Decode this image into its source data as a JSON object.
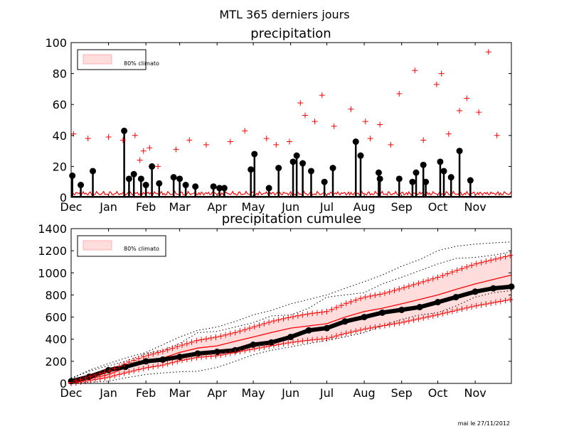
{
  "figure": {
    "suptitle": "MTL 365 derniers jours",
    "footer": "mai le 27/11/2012"
  },
  "colors": {
    "observed": "#000000",
    "mean": "#ff0000",
    "climato_band_fill": "#ffdddd",
    "climato_band_edge": "#ff9999",
    "extreme_marker": "#ff0000",
    "axes": "#000000"
  },
  "chart_data": [
    {
      "type": "line",
      "title": "precipitation",
      "xlabel": "",
      "ylabel": "",
      "xlim": [
        0,
        365
      ],
      "ylim": [
        0,
        100
      ],
      "yticks": [
        0,
        20,
        40,
        60,
        80,
        100
      ],
      "xtick_labels": [
        "Dec",
        "Jan",
        "Feb",
        "Mar",
        "Apr",
        "May",
        "Jun",
        "Jul",
        "Aug",
        "Sep",
        "Oct",
        "Nov"
      ],
      "xtick_days": [
        0,
        31,
        62,
        90,
        121,
        151,
        182,
        212,
        243,
        274,
        304,
        335
      ],
      "legend": {
        "position": "top-left",
        "entries": [
          "80% climato"
        ]
      },
      "grid": false,
      "observed_events": {
        "day": [
          1,
          8,
          18,
          44,
          48,
          52,
          58,
          62,
          67,
          73,
          85,
          90,
          95,
          103,
          118,
          123,
          127,
          149,
          152,
          164,
          172,
          184,
          187,
          192,
          199,
          210,
          217,
          236,
          240,
          255,
          256,
          272,
          283,
          286,
          292,
          294,
          306,
          309,
          315,
          322,
          331
        ],
        "value": [
          14,
          8,
          17,
          43,
          12,
          15,
          12,
          8,
          20,
          9,
          13,
          12,
          8,
          7,
          7,
          6,
          6,
          18,
          28,
          6,
          19,
          23,
          27,
          22,
          17,
          10,
          19,
          36,
          27,
          16,
          12,
          12,
          10,
          16,
          21,
          10,
          23,
          17,
          13,
          30,
          11
        ]
      },
      "climate_outliers": {
        "day": [
          2,
          14,
          31,
          43,
          53,
          57,
          60,
          65,
          72,
          87,
          98,
          112,
          132,
          144,
          162,
          170,
          181,
          190,
          194,
          202,
          208,
          218,
          232,
          244,
          248,
          256,
          265,
          272,
          285,
          292,
          303,
          307,
          313,
          322,
          328,
          338,
          346,
          353
        ],
        "value": [
          41,
          38,
          39,
          37,
          40,
          24,
          30,
          32,
          20,
          31,
          37,
          34,
          36,
          43,
          38,
          34,
          36,
          61,
          53,
          49,
          66,
          46,
          57,
          49,
          38,
          47,
          34,
          67,
          82,
          37,
          73,
          80,
          41,
          56,
          64,
          55,
          94,
          40
        ]
      }
    },
    {
      "type": "line",
      "title": "precipitation cumulee",
      "xlabel": "",
      "ylabel": "",
      "xlim": [
        0,
        365
      ],
      "ylim": [
        0,
        1400
      ],
      "yticks": [
        0,
        200,
        400,
        600,
        800,
        1000,
        1200,
        1400
      ],
      "xtick_labels": [
        "Dec",
        "Jan",
        "Feb",
        "Mar",
        "Apr",
        "May",
        "Jun",
        "Jul",
        "Aug",
        "Sep",
        "Oct",
        "Nov"
      ],
      "xtick_days": [
        0,
        31,
        62,
        90,
        121,
        151,
        182,
        212,
        243,
        274,
        304,
        335
      ],
      "legend": {
        "position": "top-left",
        "entries": [
          "80% climato"
        ]
      },
      "grid": false,
      "day": [
        0,
        15,
        31,
        45,
        62,
        76,
        90,
        105,
        121,
        136,
        151,
        166,
        182,
        197,
        212,
        227,
        243,
        258,
        274,
        289,
        304,
        319,
        335,
        350,
        365
      ],
      "observed": [
        20,
        60,
        120,
        150,
        200,
        215,
        240,
        270,
        285,
        300,
        350,
        370,
        420,
        480,
        500,
        560,
        600,
        640,
        665,
        690,
        735,
        780,
        830,
        860,
        875
      ],
      "climato_mean": [
        0,
        40,
        80,
        140,
        200,
        230,
        280,
        320,
        340,
        380,
        420,
        460,
        500,
        520,
        540,
        600,
        650,
        680,
        720,
        760,
        800,
        850,
        900,
        940,
        980
      ],
      "climato_p10": [
        0,
        25,
        55,
        95,
        140,
        165,
        205,
        235,
        250,
        280,
        310,
        340,
        370,
        390,
        405,
        450,
        490,
        520,
        550,
        585,
        620,
        660,
        700,
        730,
        760
      ],
      "climato_p90": [
        10,
        60,
        110,
        180,
        250,
        290,
        340,
        390,
        420,
        460,
        510,
        560,
        600,
        630,
        650,
        720,
        780,
        810,
        860,
        910,
        960,
        1020,
        1080,
        1120,
        1160
      ],
      "climato_min": [
        0,
        10,
        20,
        50,
        80,
        95,
        105,
        110,
        145,
        200,
        260,
        300,
        330,
        360,
        390,
        420,
        460,
        520,
        580,
        620,
        640,
        700,
        780,
        820,
        840
      ],
      "climato_max": [
        50,
        110,
        160,
        200,
        270,
        300,
        360,
        460,
        470,
        510,
        550,
        610,
        620,
        680,
        780,
        800,
        820,
        900,
        960,
        1020,
        1080,
        1130,
        1140,
        1160,
        1190
      ],
      "extreme_max": [
        40,
        120,
        180,
        230,
        280,
        350,
        420,
        480,
        510,
        560,
        620,
        660,
        720,
        760,
        800,
        860,
        920,
        980,
        1060,
        1120,
        1200,
        1240,
        1260,
        1270,
        1280
      ]
    }
  ]
}
